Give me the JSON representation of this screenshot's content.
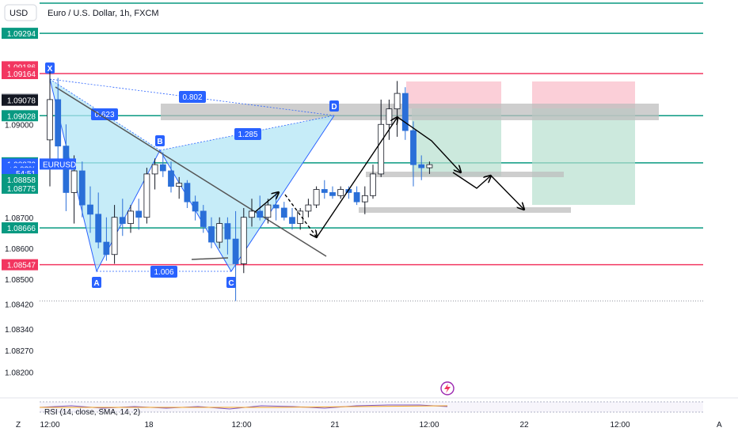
{
  "header": {
    "currency_label": "USD",
    "title": "Euro / U.S. Dollar, 1h, FXCM"
  },
  "colors": {
    "up": "#ffffff",
    "down": "#2a6fd8",
    "level": "#089981",
    "red_level": "#f23660",
    "harmonic_fill": "#b3e5f5",
    "harmonic_line": "#2962ff",
    "trend": "#555555",
    "bid": "#131722",
    "ask": "#787b86"
  },
  "chart_data": {
    "type": "candlestick",
    "title": "Euro / U.S. Dollar, 1h, FXCM",
    "symbol": "EURUSD",
    "ylim": [
      1.0813,
      1.0933
    ],
    "y_ticks": [
      1.09,
      1.087,
      1.086,
      1.085,
      1.0842,
      1.0834,
      1.0827,
      1.082
    ],
    "x_ticks": [
      "12:00",
      "18",
      "12:00",
      "21",
      "12:00",
      "22",
      "12:00"
    ],
    "candles": [
      {
        "o": 1.0895,
        "h": 1.0917,
        "l": 1.088,
        "c": 1.0908
      },
      {
        "o": 1.0908,
        "h": 1.0915,
        "l": 1.0888,
        "c": 1.0893
      },
      {
        "o": 1.0893,
        "h": 1.09,
        "l": 1.0872,
        "c": 1.0878
      },
      {
        "o": 1.0878,
        "h": 1.089,
        "l": 1.0868,
        "c": 1.0885
      },
      {
        "o": 1.0885,
        "h": 1.0888,
        "l": 1.087,
        "c": 1.0874
      },
      {
        "o": 1.0874,
        "h": 1.088,
        "l": 1.0865,
        "c": 1.0871
      },
      {
        "o": 1.0871,
        "h": 1.0878,
        "l": 1.086,
        "c": 1.0862
      },
      {
        "o": 1.0862,
        "h": 1.087,
        "l": 1.0856,
        "c": 1.0858
      },
      {
        "o": 1.0858,
        "h": 1.0874,
        "l": 1.0855,
        "c": 1.087
      },
      {
        "o": 1.087,
        "h": 1.0876,
        "l": 1.0864,
        "c": 1.0868
      },
      {
        "o": 1.0868,
        "h": 1.0874,
        "l": 1.0865,
        "c": 1.0872
      },
      {
        "o": 1.0872,
        "h": 1.0876,
        "l": 1.0866,
        "c": 1.087
      },
      {
        "o": 1.087,
        "h": 1.0886,
        "l": 1.0868,
        "c": 1.0884
      },
      {
        "o": 1.0884,
        "h": 1.0889,
        "l": 1.0879,
        "c": 1.0887
      },
      {
        "o": 1.0887,
        "h": 1.0891,
        "l": 1.0883,
        "c": 1.0885
      },
      {
        "o": 1.0885,
        "h": 1.0888,
        "l": 1.0878,
        "c": 1.088
      },
      {
        "o": 1.088,
        "h": 1.0883,
        "l": 1.0876,
        "c": 1.0881
      },
      {
        "o": 1.0881,
        "h": 1.0882,
        "l": 1.0873,
        "c": 1.0875
      },
      {
        "o": 1.0875,
        "h": 1.0877,
        "l": 1.0869,
        "c": 1.0872
      },
      {
        "o": 1.0872,
        "h": 1.0874,
        "l": 1.0865,
        "c": 1.0867
      },
      {
        "o": 1.0867,
        "h": 1.087,
        "l": 1.086,
        "c": 1.0862
      },
      {
        "o": 1.0862,
        "h": 1.087,
        "l": 1.086,
        "c": 1.0868
      },
      {
        "o": 1.0868,
        "h": 1.087,
        "l": 1.0858,
        "c": 1.0863
      },
      {
        "o": 1.0863,
        "h": 1.0872,
        "l": 1.0843,
        "c": 1.0855
      },
      {
        "o": 1.0855,
        "h": 1.0873,
        "l": 1.0852,
        "c": 1.087
      },
      {
        "o": 1.087,
        "h": 1.0876,
        "l": 1.0867,
        "c": 1.0872
      },
      {
        "o": 1.0872,
        "h": 1.0877,
        "l": 1.0869,
        "c": 1.087
      },
      {
        "o": 1.087,
        "h": 1.0876,
        "l": 1.0868,
        "c": 1.0874
      },
      {
        "o": 1.0874,
        "h": 1.0878,
        "l": 1.0869,
        "c": 1.0873
      },
      {
        "o": 1.0873,
        "h": 1.0875,
        "l": 1.0869,
        "c": 1.087
      },
      {
        "o": 1.087,
        "h": 1.0873,
        "l": 1.0866,
        "c": 1.0868
      },
      {
        "o": 1.0868,
        "h": 1.0873,
        "l": 1.0866,
        "c": 1.0872
      },
      {
        "o": 1.0872,
        "h": 1.0876,
        "l": 1.087,
        "c": 1.0874
      },
      {
        "o": 1.0874,
        "h": 1.088,
        "l": 1.0873,
        "c": 1.0879
      },
      {
        "o": 1.0879,
        "h": 1.0882,
        "l": 1.0876,
        "c": 1.0878
      },
      {
        "o": 1.0878,
        "h": 1.088,
        "l": 1.0876,
        "c": 1.0877
      },
      {
        "o": 1.0877,
        "h": 1.088,
        "l": 1.0876,
        "c": 1.0879
      },
      {
        "o": 1.0879,
        "h": 1.088,
        "l": 1.0876,
        "c": 1.0878
      },
      {
        "o": 1.0878,
        "h": 1.088,
        "l": 1.0874,
        "c": 1.0875
      },
      {
        "o": 1.0875,
        "h": 1.088,
        "l": 1.0871,
        "c": 1.0877
      },
      {
        "o": 1.0877,
        "h": 1.0887,
        "l": 1.0876,
        "c": 1.0884
      },
      {
        "o": 1.0884,
        "h": 1.0908,
        "l": 1.0883,
        "c": 1.09
      },
      {
        "o": 1.09,
        "h": 1.0908,
        "l": 1.0895,
        "c": 1.0905
      },
      {
        "o": 1.0905,
        "h": 1.0914,
        "l": 1.0896,
        "c": 1.091
      },
      {
        "o": 1.091,
        "h": 1.0912,
        "l": 1.0895,
        "c": 1.0898
      },
      {
        "o": 1.0898,
        "h": 1.0901,
        "l": 1.088,
        "c": 1.0887
      },
      {
        "o": 1.0887,
        "h": 1.089,
        "l": 1.0882,
        "c": 1.0886
      },
      {
        "o": 1.0886,
        "h": 1.0888,
        "l": 1.0884,
        "c": 1.0887
      }
    ]
  },
  "price_tags": [
    {
      "text": "1.09294",
      "price": 1.09294,
      "bg": "#089981"
    },
    {
      "text": "1.09186",
      "price": 1.09186,
      "bg": "#f23660"
    },
    {
      "text": "1.09166",
      "price": 1.09166,
      "bg": "#f23660"
    },
    {
      "text": "1.09164",
      "price": 1.09164,
      "bg": "#f23660"
    },
    {
      "text": "1.09081",
      "price": 1.09081,
      "bg": "#787b86"
    },
    {
      "text": "1.09078",
      "price": 1.09078,
      "bg": "#131722"
    },
    {
      "text": "1.09028",
      "price": 1.09028,
      "bg": "#089981"
    },
    {
      "text": "1.08876",
      "price": 1.08876,
      "bg": "#089981"
    },
    {
      "text": "1.08872",
      "price": 1.08872,
      "bg": "#2962ff"
    },
    {
      "text": "+0.03%",
      "price": 1.08857,
      "bg": "#2962ff"
    },
    {
      "text": "54:51",
      "price": 1.08842,
      "bg": "#2962ff"
    },
    {
      "text": "1.08858",
      "price": 1.08822,
      "bg": "#089981"
    },
    {
      "text": "1.08775",
      "price": 1.08794,
      "bg": "#089981"
    },
    {
      "text": "1.08666",
      "price": 1.08666,
      "bg": "#089981"
    },
    {
      "text": "1.08547",
      "price": 1.08547,
      "bg": "#f23660"
    }
  ],
  "symbol_tag": "EURUSD",
  "horizontal_levels": [
    {
      "price": 1.09294,
      "color": "#089981"
    },
    {
      "price": 1.09164,
      "color": "#f23660"
    },
    {
      "price": 1.09028,
      "color": "#089981"
    },
    {
      "price": 1.08876,
      "color": "#089981"
    },
    {
      "price": 1.08666,
      "color": "#089981"
    },
    {
      "price": 1.08547,
      "color": "#f23660"
    }
  ],
  "harmonic": {
    "points": [
      {
        "label": "X",
        "price": 1.09186
      },
      {
        "label": "A",
        "price": 1.0856
      },
      {
        "label": "B",
        "price": 1.08975
      },
      {
        "label": "C",
        "price": 1.0856
      },
      {
        "label": "D",
        "price": 1.0907
      }
    ],
    "ratios": [
      "0.623",
      "0.802",
      "1.285",
      "1.006"
    ]
  },
  "rsi_label": "RSI (14, close, SMA, 14, 2)",
  "corner_left": "Z",
  "corner_right": "A"
}
